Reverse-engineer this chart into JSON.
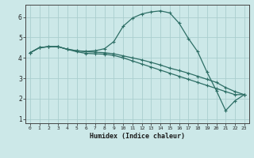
{
  "xlabel": "Humidex (Indice chaleur)",
  "bg_color": "#cce8e8",
  "line_color": "#2d6e65",
  "grid_color": "#aacece",
  "xlim": [
    -0.5,
    23.5
  ],
  "ylim": [
    0.8,
    6.6
  ],
  "xticks": [
    0,
    1,
    2,
    3,
    4,
    5,
    6,
    7,
    8,
    9,
    10,
    11,
    12,
    13,
    14,
    15,
    16,
    17,
    18,
    19,
    20,
    21,
    22,
    23
  ],
  "yticks": [
    1,
    2,
    3,
    4,
    5,
    6
  ],
  "line1_x": [
    0,
    1,
    2,
    3,
    4,
    5,
    6,
    7,
    8,
    9,
    10,
    11,
    12,
    13,
    14,
    15,
    16,
    17,
    18,
    19,
    20,
    21,
    22,
    23
  ],
  "line1_y": [
    4.25,
    4.5,
    4.55,
    4.55,
    4.42,
    4.35,
    4.3,
    4.28,
    4.25,
    4.2,
    4.1,
    4.0,
    3.9,
    3.78,
    3.65,
    3.5,
    3.38,
    3.25,
    3.1,
    2.95,
    2.8,
    2.55,
    2.35,
    2.2
  ],
  "line2_x": [
    0,
    1,
    2,
    3,
    4,
    5,
    6,
    7,
    8,
    9,
    10,
    11,
    12,
    13,
    14,
    15,
    16,
    17,
    18,
    19,
    20,
    21,
    22,
    23
  ],
  "line2_y": [
    4.25,
    4.5,
    4.55,
    4.55,
    4.42,
    4.35,
    4.32,
    4.35,
    4.45,
    4.8,
    5.55,
    5.95,
    6.15,
    6.25,
    6.3,
    6.2,
    5.7,
    4.95,
    4.3,
    3.3,
    2.4,
    1.42,
    1.9,
    2.2
  ],
  "line3_x": [
    0,
    1,
    2,
    3,
    4,
    5,
    6,
    7,
    8,
    9,
    10,
    11,
    12,
    13,
    14,
    15,
    16,
    17,
    18,
    19,
    20,
    21,
    22,
    23
  ],
  "line3_y": [
    4.25,
    4.5,
    4.55,
    4.55,
    4.42,
    4.3,
    4.22,
    4.2,
    4.18,
    4.12,
    4.0,
    3.85,
    3.7,
    3.55,
    3.4,
    3.25,
    3.1,
    2.95,
    2.8,
    2.65,
    2.5,
    2.35,
    2.2,
    2.2
  ],
  "marker": "+",
  "markersize": 3.5,
  "linewidth": 0.9
}
